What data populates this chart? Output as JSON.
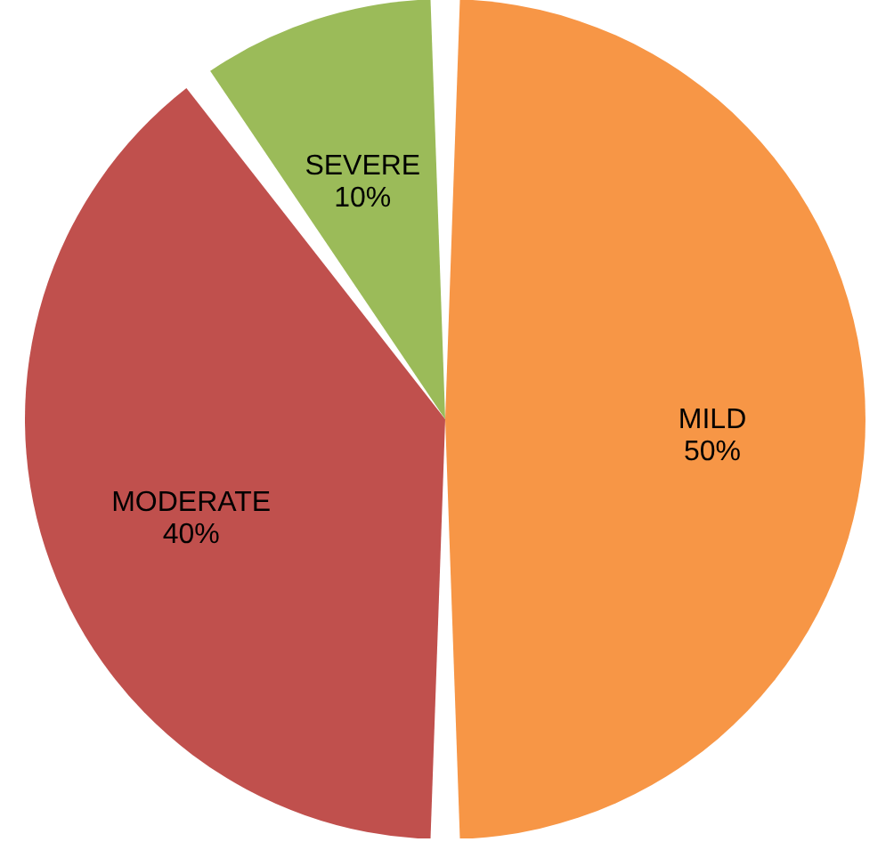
{
  "chart_data": {
    "type": "pie",
    "categories": [
      "MILD",
      "MODERATE",
      "SEVERE"
    ],
    "values": [
      50,
      40,
      10
    ],
    "colors": [
      "#f79646",
      "#c0504d",
      "#9bbb59"
    ],
    "value_labels": [
      "50%",
      "40%",
      "10%"
    ],
    "legend": false
  }
}
